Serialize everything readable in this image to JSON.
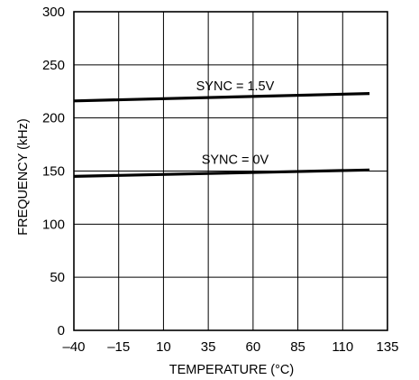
{
  "chart_data": {
    "type": "line",
    "title": "",
    "xlabel": "TEMPERATURE (°C)",
    "ylabel": "FREQUENCY (kHz)",
    "xlim": [
      -40,
      135
    ],
    "ylim": [
      0,
      300
    ],
    "x_ticks": [
      -40,
      -15,
      10,
      35,
      60,
      85,
      110,
      135
    ],
    "y_ticks": [
      0,
      50,
      100,
      150,
      200,
      250,
      300
    ],
    "x_tick_labels": [
      "–40",
      "–15",
      "10",
      "35",
      "60",
      "85",
      "110",
      "135"
    ],
    "y_tick_labels": [
      "0",
      "50",
      "100",
      "150",
      "200",
      "250",
      "300"
    ],
    "grid": true,
    "legend": "none",
    "series": [
      {
        "x": [
          -40,
          125
        ],
        "values": [
          216,
          223
        ]
      },
      {
        "x": [
          -40,
          125
        ],
        "values": [
          145,
          151
        ]
      }
    ],
    "annotations": [
      {
        "text": "SYNC = 1.5V",
        "x": 50,
        "y": 226
      },
      {
        "text": "SYNC = 0V",
        "x": 50,
        "y": 157
      }
    ]
  }
}
